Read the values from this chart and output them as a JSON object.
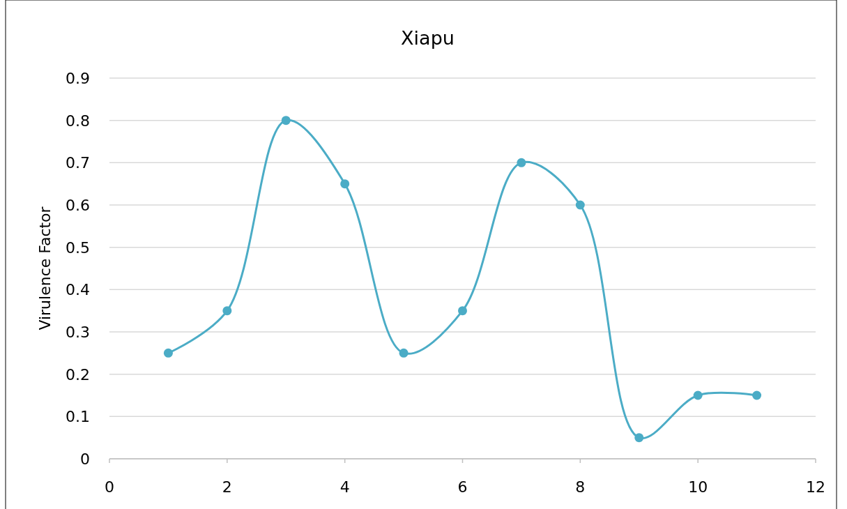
{
  "chart_data": {
    "type": "line",
    "title": "Xiapu",
    "ylabel": "Virulence Factor",
    "x": [
      1,
      2,
      3,
      4,
      5,
      6,
      7,
      8,
      9,
      10,
      11
    ],
    "series": [
      {
        "color": "#4bacc6",
        "values": [
          0.25,
          0.35,
          0.8,
          0.65,
          0.25,
          0.35,
          0.7,
          0.6,
          0.05,
          0.15,
          0.15
        ]
      }
    ],
    "xlim": [
      0,
      12
    ],
    "xticks": [
      0,
      2,
      4,
      6,
      8,
      10,
      12
    ],
    "ylim": [
      0,
      0.9
    ],
    "yticks": [
      0,
      0.1,
      0.2,
      0.3,
      0.4,
      0.5,
      0.6,
      0.7,
      0.8,
      0.9
    ],
    "grid": "y",
    "marker": "circle",
    "line_style": "solid"
  }
}
